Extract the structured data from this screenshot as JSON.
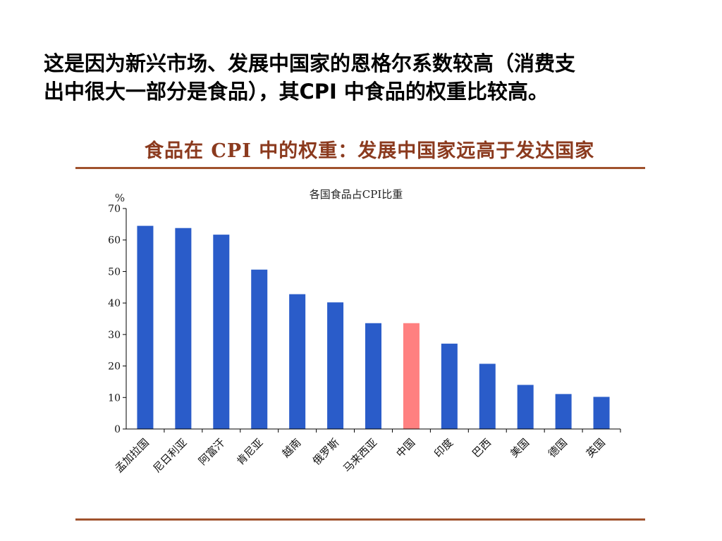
{
  "slide": {
    "line1": "这是因为新兴市场、发展中国家的恩格尔系数较高（消费支",
    "line2": "出中很大一部分是食品），其CPI 中食品的权重比较高。"
  },
  "chart_heading": "食品在 CPI 中的权重：发展中国家远高于发达国家",
  "colors": {
    "bar": "#2a5cc9",
    "highlight": "#ff8080",
    "rule": "#a0522d",
    "heading": "#8b3a1e"
  },
  "chart_data": {
    "type": "bar",
    "title": "各国食品占CPI比重",
    "ylabel": "%",
    "xlabel": "",
    "ylim": [
      0,
      70
    ],
    "yticks": [
      0,
      10,
      20,
      30,
      40,
      50,
      60,
      70
    ],
    "categories": [
      "孟加拉国",
      "尼日利亚",
      "阿富汗",
      "肯尼亚",
      "越南",
      "俄罗斯",
      "马来西亚",
      "中国",
      "印度",
      "巴西",
      "美国",
      "德国",
      "英国"
    ],
    "values": [
      64.5,
      63.8,
      61.7,
      50.6,
      42.8,
      40.2,
      33.6,
      33.6,
      27.1,
      20.7,
      14.0,
      11.1,
      10.2
    ],
    "highlight_category": "中国",
    "grid": false,
    "legend": "none"
  }
}
